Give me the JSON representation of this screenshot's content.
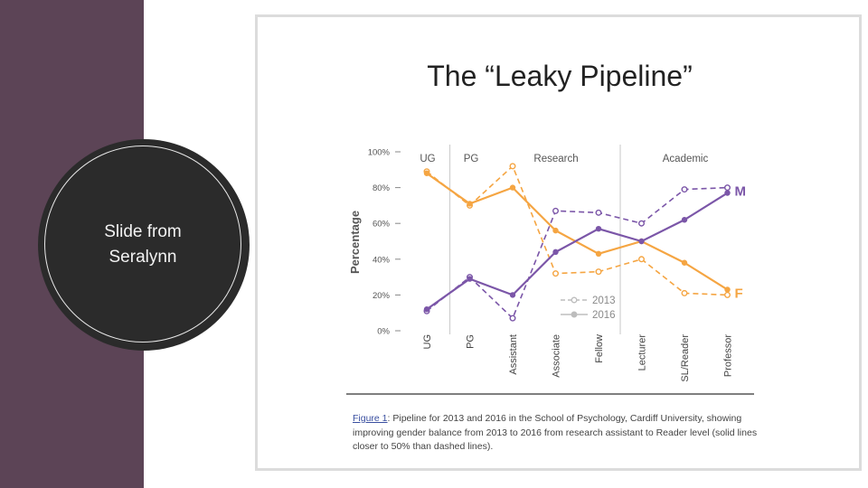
{
  "slide": {
    "circle_text": "Slide from\nSeralynn"
  },
  "caption": {
    "label": "Figure 1",
    "text": ": Pipeline for 2013 and 2016 in the School of Psychology, Cardiff University, showing improving gender balance from 2013 to 2016 from research assistant to Reader level (solid lines closer to 50% than dashed lines)."
  },
  "colors": {
    "female": "#f5a542",
    "male": "#7b56a8",
    "legend_gray": "#bdbdbd",
    "sidebar": "#5c4456"
  },
  "chart_data": {
    "type": "line",
    "title": "The “Leaky Pipeline”",
    "ylabel": "Percentage",
    "xlabel": "",
    "ylim": [
      0,
      100
    ],
    "y_ticks": [
      "0%",
      "20%",
      "40%",
      "60%",
      "80%",
      "100%"
    ],
    "categories": [
      "UG",
      "PG",
      "Assistant",
      "Associate",
      "Fellow",
      "Lecturer",
      "SL/Reader",
      "Professor"
    ],
    "groups": [
      "UG",
      "PG",
      "Research",
      "Academic"
    ],
    "series": [
      {
        "gender": "F",
        "year": "2013",
        "style": "dashed",
        "values": [
          89,
          70,
          92,
          32,
          33,
          40,
          21,
          20
        ]
      },
      {
        "gender": "F",
        "year": "2016",
        "style": "solid",
        "values": [
          88,
          71,
          80,
          56,
          43,
          50,
          38,
          23
        ]
      },
      {
        "gender": "M",
        "year": "2013",
        "style": "dashed",
        "values": [
          11,
          30,
          7,
          67,
          66,
          60,
          79,
          80
        ]
      },
      {
        "gender": "M",
        "year": "2016",
        "style": "solid",
        "values": [
          12,
          29,
          20,
          44,
          57,
          50,
          62,
          77
        ]
      }
    ],
    "end_labels": [
      "M",
      "F"
    ],
    "legend": [
      "2013",
      "2016"
    ],
    "legend_position": "bottom-middle",
    "grid": false
  }
}
